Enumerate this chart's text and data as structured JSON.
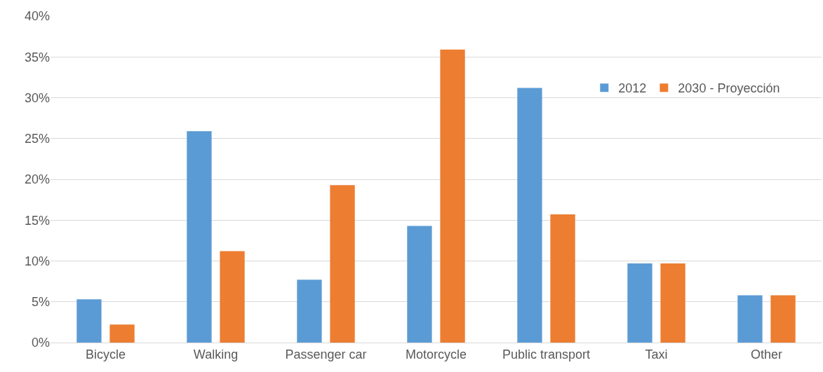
{
  "chart_data": {
    "type": "bar",
    "categories": [
      "Bicycle",
      "Walking",
      "Passenger car",
      "Motorcycle",
      "Public transport",
      "Taxi",
      "Other"
    ],
    "series": [
      {
        "name": "2012",
        "color": "#5b9bd5",
        "values": [
          5.3,
          25.9,
          7.7,
          14.3,
          31.2,
          9.7,
          5.8
        ]
      },
      {
        "name": "2030 - Proyección",
        "color": "#ed7d31",
        "values": [
          2.2,
          11.2,
          19.3,
          35.9,
          15.7,
          9.7,
          5.8
        ]
      }
    ],
    "ylim": [
      0,
      40
    ],
    "yticks": [
      {
        "value": 0,
        "label": "0%"
      },
      {
        "value": 5,
        "label": "5%"
      },
      {
        "value": 10,
        "label": "10%"
      },
      {
        "value": 15,
        "label": "15%"
      },
      {
        "value": 20,
        "label": "20%"
      },
      {
        "value": 25,
        "label": "25%"
      },
      {
        "value": 30,
        "label": "30%"
      },
      {
        "value": 35,
        "label": "35%"
      },
      {
        "value": 40,
        "label": "40%"
      }
    ],
    "grid": "y",
    "legend": "top right"
  }
}
